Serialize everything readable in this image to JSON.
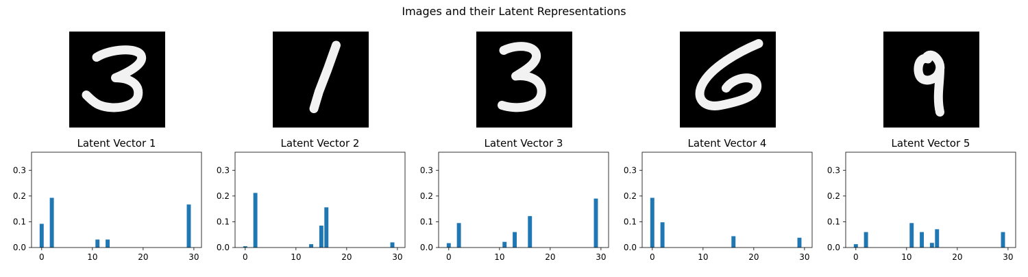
{
  "figure": {
    "suptitle": "Images and their Latent Representations"
  },
  "images": [
    {
      "digit_shown": "3"
    },
    {
      "digit_shown": "1"
    },
    {
      "digit_shown": "3"
    },
    {
      "digit_shown": "6"
    },
    {
      "digit_shown": "9"
    }
  ],
  "colors": {
    "bar": "#1f77b4",
    "axis": "#000000",
    "image_bg": "#000000",
    "stroke": "#f2f2f2"
  },
  "chart_data": [
    {
      "type": "bar",
      "title": "Latent Vector 1",
      "xlim": [
        -2,
        31.5
      ],
      "ylim": [
        0,
        0.37
      ],
      "xticks": [
        0,
        10,
        20,
        30
      ],
      "yticks": [
        0.0,
        0.1,
        0.2,
        0.3
      ],
      "x": [
        0,
        2,
        11,
        13,
        29
      ],
      "values": [
        0.092,
        0.193,
        0.031,
        0.031,
        0.167
      ]
    },
    {
      "type": "bar",
      "title": "Latent Vector 2",
      "xlim": [
        -2,
        31.5
      ],
      "ylim": [
        0,
        0.37
      ],
      "xticks": [
        0,
        10,
        20,
        30
      ],
      "yticks": [
        0.0,
        0.1,
        0.2,
        0.3
      ],
      "x": [
        0,
        2,
        13,
        15,
        16,
        29
      ],
      "values": [
        0.005,
        0.212,
        0.013,
        0.085,
        0.156,
        0.02
      ]
    },
    {
      "type": "bar",
      "title": "Latent Vector 3",
      "xlim": [
        -2,
        31.5
      ],
      "ylim": [
        0,
        0.37
      ],
      "xticks": [
        0,
        10,
        20,
        30
      ],
      "yticks": [
        0.0,
        0.1,
        0.2,
        0.3
      ],
      "x": [
        0,
        2,
        11,
        13,
        16,
        29
      ],
      "values": [
        0.017,
        0.095,
        0.022,
        0.06,
        0.122,
        0.19
      ]
    },
    {
      "type": "bar",
      "title": "Latent Vector 4",
      "xlim": [
        -2,
        31.5
      ],
      "ylim": [
        0,
        0.37
      ],
      "xticks": [
        0,
        10,
        20,
        30
      ],
      "yticks": [
        0.0,
        0.1,
        0.2,
        0.3
      ],
      "x": [
        0,
        2,
        16,
        29
      ],
      "values": [
        0.193,
        0.098,
        0.044,
        0.038
      ]
    },
    {
      "type": "bar",
      "title": "Latent Vector 5",
      "xlim": [
        -2,
        31.5
      ],
      "ylim": [
        0,
        0.37
      ],
      "xticks": [
        0,
        10,
        20,
        30
      ],
      "yticks": [
        0.0,
        0.1,
        0.2,
        0.3
      ],
      "x": [
        0,
        2,
        11,
        13,
        15,
        16,
        29
      ],
      "values": [
        0.013,
        0.06,
        0.095,
        0.06,
        0.018,
        0.071,
        0.06
      ]
    }
  ]
}
